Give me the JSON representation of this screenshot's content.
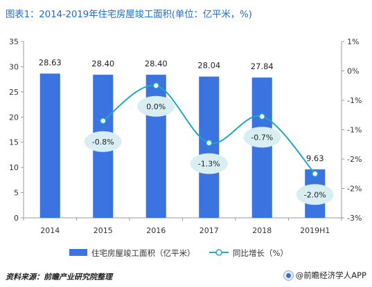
{
  "title": "图表1：2014-2019年住宅房屋竣工面积(单位：亿平米，%)",
  "footer": {
    "source": "资料来源：前瞻产业研究院整理",
    "brand": "@前瞻经济学人APP"
  },
  "colors": {
    "bar": "#3b73e0",
    "line": "#1fa6c7",
    "bubble": "#d8eef3",
    "axis": "#999999",
    "brand_icon": "brand-logo-icon"
  },
  "chart_data": {
    "type": "bar+line",
    "categories": [
      "2014",
      "2015",
      "2016",
      "2017",
      "2018",
      "2019H1"
    ],
    "series": [
      {
        "name": "住宅房屋竣工面积（亿平米）",
        "type": "bar",
        "axis": "left",
        "values": [
          28.63,
          28.4,
          28.4,
          28.04,
          27.84,
          9.63
        ],
        "labels": [
          "28.63",
          "28.40",
          "28.40",
          "28.04",
          "27.84",
          "9.63"
        ]
      },
      {
        "name": "同比增长（%）",
        "type": "line",
        "axis": "right",
        "values": [
          null,
          -0.8,
          0.0,
          -1.3,
          -0.7,
          -2.0
        ],
        "labels": [
          "",
          "-0.8%",
          "0.0%",
          "-1.3%",
          "-0.7%",
          "-2.0%"
        ]
      }
    ],
    "y_left": {
      "ylim": [
        0,
        35
      ],
      "ticks": [
        0,
        5,
        10,
        15,
        20,
        25,
        30,
        35
      ],
      "tick_labels": [
        "0",
        "5",
        "10",
        "15",
        "20",
        "25",
        "30",
        "35"
      ]
    },
    "y_right": {
      "ylim": [
        -3,
        1
      ],
      "ticks": [
        1,
        0,
        -1,
        -1.5,
        -2,
        -2.5,
        -3
      ],
      "tick_labels": [
        "1%",
        "0%",
        "-1%",
        "-1%",
        "-2%",
        "-2%",
        "-3%"
      ]
    },
    "legend_position": "bottom",
    "grid": false
  }
}
